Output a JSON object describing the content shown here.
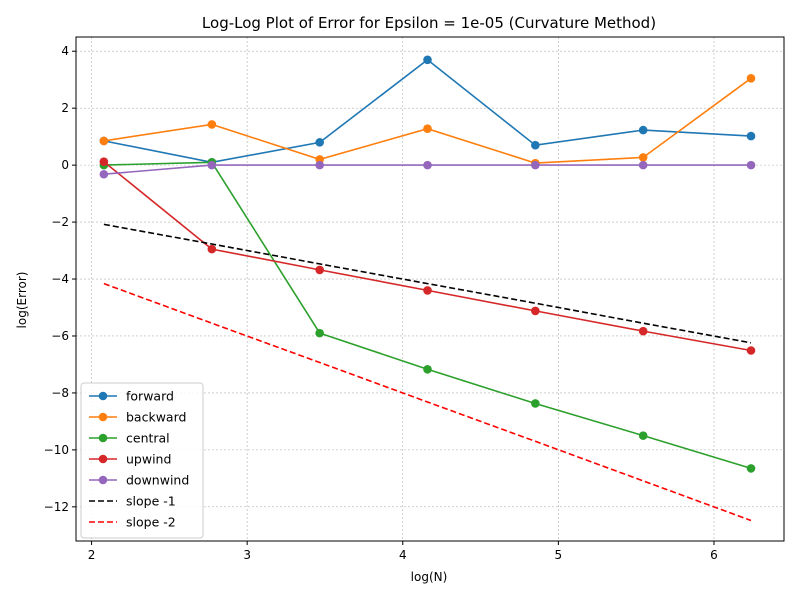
{
  "chart_data": {
    "type": "line",
    "title": "Log-Log Plot of Error for Epsilon = 1e-05 (Curvature Method)",
    "xlabel": "log(N)",
    "ylabel": "log(Error)",
    "xlim": [
      1.9,
      6.45
    ],
    "ylim": [
      -13.2,
      4.5
    ],
    "xticks": [
      2,
      3,
      4,
      5,
      6
    ],
    "yticks": [
      -12,
      -10,
      -8,
      -6,
      -4,
      -2,
      0,
      2,
      4
    ],
    "grid": true,
    "legend_position": "lower-left",
    "x": [
      2.079,
      2.773,
      3.466,
      4.159,
      4.852,
      5.545,
      6.238
    ],
    "series": [
      {
        "name": "forward",
        "color": "#1f77b4",
        "style": "solid",
        "marker": true,
        "values": [
          0.85,
          0.1,
          0.8,
          3.7,
          0.7,
          1.23,
          1.02
        ]
      },
      {
        "name": "backward",
        "color": "#ff7f0e",
        "style": "solid",
        "marker": true,
        "values": [
          0.85,
          1.43,
          0.2,
          1.28,
          0.07,
          0.27,
          3.05
        ]
      },
      {
        "name": "central",
        "color": "#2ca02c",
        "style": "solid",
        "marker": true,
        "values": [
          0.0,
          0.1,
          -5.9,
          -7.17,
          -8.37,
          -9.5,
          -10.65
        ]
      },
      {
        "name": "upwind",
        "color": "#d62728",
        "style": "solid",
        "marker": true,
        "values": [
          0.12,
          -2.95,
          -3.68,
          -4.4,
          -5.12,
          -5.83,
          -6.51
        ]
      },
      {
        "name": "downwind",
        "color": "#9467bd",
        "style": "solid",
        "marker": true,
        "values": [
          -0.32,
          0.0,
          0.0,
          0.0,
          0.0,
          0.0,
          0.0
        ]
      },
      {
        "name": "slope -1",
        "color": "#000000",
        "style": "dashed",
        "marker": false,
        "values": [
          -2.08,
          -2.77,
          -3.47,
          -4.16,
          -4.85,
          -5.55,
          -6.24
        ]
      },
      {
        "name": "slope -2",
        "color": "#ff0000",
        "style": "dashed",
        "marker": false,
        "values": [
          -4.16,
          -5.55,
          -6.93,
          -8.32,
          -9.7,
          -11.09,
          -12.48
        ]
      }
    ]
  }
}
